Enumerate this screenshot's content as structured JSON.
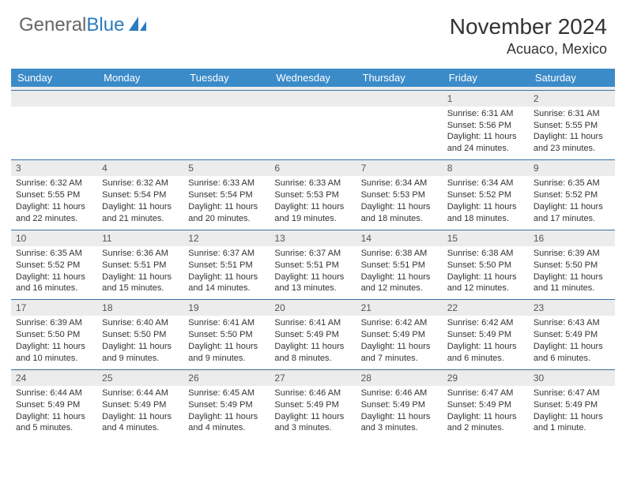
{
  "brand": {
    "part1": "General",
    "part2": "Blue"
  },
  "title": "November 2024",
  "location": "Acuaco, Mexico",
  "colors": {
    "header_bg": "#3b8bc9",
    "header_fg": "#ffffff",
    "daynum_bg": "#ececec",
    "row_border": "#3b6fa0",
    "text": "#333333",
    "brand_gray": "#666666",
    "brand_blue": "#2b7bbd"
  },
  "dayNames": [
    "Sunday",
    "Monday",
    "Tuesday",
    "Wednesday",
    "Thursday",
    "Friday",
    "Saturday"
  ],
  "firstWeekday": 5,
  "daysInMonth": 30,
  "labels": {
    "sunrise": "Sunrise:",
    "sunset": "Sunset:",
    "daylight": "Daylight:"
  },
  "days": {
    "1": {
      "sunrise": "6:31 AM",
      "sunset": "5:56 PM",
      "daylight": "11 hours and 24 minutes."
    },
    "2": {
      "sunrise": "6:31 AM",
      "sunset": "5:55 PM",
      "daylight": "11 hours and 23 minutes."
    },
    "3": {
      "sunrise": "6:32 AM",
      "sunset": "5:55 PM",
      "daylight": "11 hours and 22 minutes."
    },
    "4": {
      "sunrise": "6:32 AM",
      "sunset": "5:54 PM",
      "daylight": "11 hours and 21 minutes."
    },
    "5": {
      "sunrise": "6:33 AM",
      "sunset": "5:54 PM",
      "daylight": "11 hours and 20 minutes."
    },
    "6": {
      "sunrise": "6:33 AM",
      "sunset": "5:53 PM",
      "daylight": "11 hours and 19 minutes."
    },
    "7": {
      "sunrise": "6:34 AM",
      "sunset": "5:53 PM",
      "daylight": "11 hours and 18 minutes."
    },
    "8": {
      "sunrise": "6:34 AM",
      "sunset": "5:52 PM",
      "daylight": "11 hours and 18 minutes."
    },
    "9": {
      "sunrise": "6:35 AM",
      "sunset": "5:52 PM",
      "daylight": "11 hours and 17 minutes."
    },
    "10": {
      "sunrise": "6:35 AM",
      "sunset": "5:52 PM",
      "daylight": "11 hours and 16 minutes."
    },
    "11": {
      "sunrise": "6:36 AM",
      "sunset": "5:51 PM",
      "daylight": "11 hours and 15 minutes."
    },
    "12": {
      "sunrise": "6:37 AM",
      "sunset": "5:51 PM",
      "daylight": "11 hours and 14 minutes."
    },
    "13": {
      "sunrise": "6:37 AM",
      "sunset": "5:51 PM",
      "daylight": "11 hours and 13 minutes."
    },
    "14": {
      "sunrise": "6:38 AM",
      "sunset": "5:51 PM",
      "daylight": "11 hours and 12 minutes."
    },
    "15": {
      "sunrise": "6:38 AM",
      "sunset": "5:50 PM",
      "daylight": "11 hours and 12 minutes."
    },
    "16": {
      "sunrise": "6:39 AM",
      "sunset": "5:50 PM",
      "daylight": "11 hours and 11 minutes."
    },
    "17": {
      "sunrise": "6:39 AM",
      "sunset": "5:50 PM",
      "daylight": "11 hours and 10 minutes."
    },
    "18": {
      "sunrise": "6:40 AM",
      "sunset": "5:50 PM",
      "daylight": "11 hours and 9 minutes."
    },
    "19": {
      "sunrise": "6:41 AM",
      "sunset": "5:50 PM",
      "daylight": "11 hours and 9 minutes."
    },
    "20": {
      "sunrise": "6:41 AM",
      "sunset": "5:49 PM",
      "daylight": "11 hours and 8 minutes."
    },
    "21": {
      "sunrise": "6:42 AM",
      "sunset": "5:49 PM",
      "daylight": "11 hours and 7 minutes."
    },
    "22": {
      "sunrise": "6:42 AM",
      "sunset": "5:49 PM",
      "daylight": "11 hours and 6 minutes."
    },
    "23": {
      "sunrise": "6:43 AM",
      "sunset": "5:49 PM",
      "daylight": "11 hours and 6 minutes."
    },
    "24": {
      "sunrise": "6:44 AM",
      "sunset": "5:49 PM",
      "daylight": "11 hours and 5 minutes."
    },
    "25": {
      "sunrise": "6:44 AM",
      "sunset": "5:49 PM",
      "daylight": "11 hours and 4 minutes."
    },
    "26": {
      "sunrise": "6:45 AM",
      "sunset": "5:49 PM",
      "daylight": "11 hours and 4 minutes."
    },
    "27": {
      "sunrise": "6:46 AM",
      "sunset": "5:49 PM",
      "daylight": "11 hours and 3 minutes."
    },
    "28": {
      "sunrise": "6:46 AM",
      "sunset": "5:49 PM",
      "daylight": "11 hours and 3 minutes."
    },
    "29": {
      "sunrise": "6:47 AM",
      "sunset": "5:49 PM",
      "daylight": "11 hours and 2 minutes."
    },
    "30": {
      "sunrise": "6:47 AM",
      "sunset": "5:49 PM",
      "daylight": "11 hours and 1 minute."
    }
  }
}
